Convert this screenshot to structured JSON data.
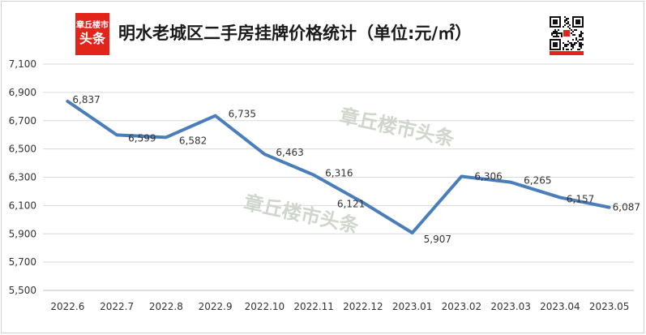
{
  "header": {
    "logo_line1": "章丘楼市",
    "logo_line2": "头条",
    "title": "明水老城区二手房挂牌价格统计（单位:元/㎡）"
  },
  "watermark": "章丘楼市头条",
  "colors": {
    "line": "#4a7ebb",
    "grid": "#d9d9d9",
    "logo": "#e1251b",
    "text": "#333333",
    "watermark": "#cfd6cc"
  },
  "chart_data": {
    "type": "line",
    "title": "明水老城区二手房挂牌价格统计（单位:元/㎡）",
    "categories": [
      "2022.6",
      "2022.7",
      "2022.8",
      "2022.9",
      "2022.10",
      "2022.11",
      "2022.12",
      "2023.01",
      "2023.02",
      "2023.03",
      "2023.04",
      "2023.05"
    ],
    "values": [
      6837,
      6599,
      6582,
      6735,
      6463,
      6316,
      6121,
      5907,
      6306,
      6265,
      6157,
      6087
    ],
    "value_labels": [
      "6,837",
      "6,599",
      "6,582",
      "6,735",
      "6,463",
      "6,316",
      "6,121",
      "5,907",
      "6,306",
      "6,265",
      "6,157",
      "6,087"
    ],
    "yticks": [
      "5,500",
      "5,700",
      "5,900",
      "6,100",
      "6,300",
      "6,500",
      "6,700",
      "6,900",
      "7,100"
    ],
    "ylim": [
      5500,
      7100
    ],
    "ytick_step": 200,
    "grid": true,
    "legend": "none"
  }
}
